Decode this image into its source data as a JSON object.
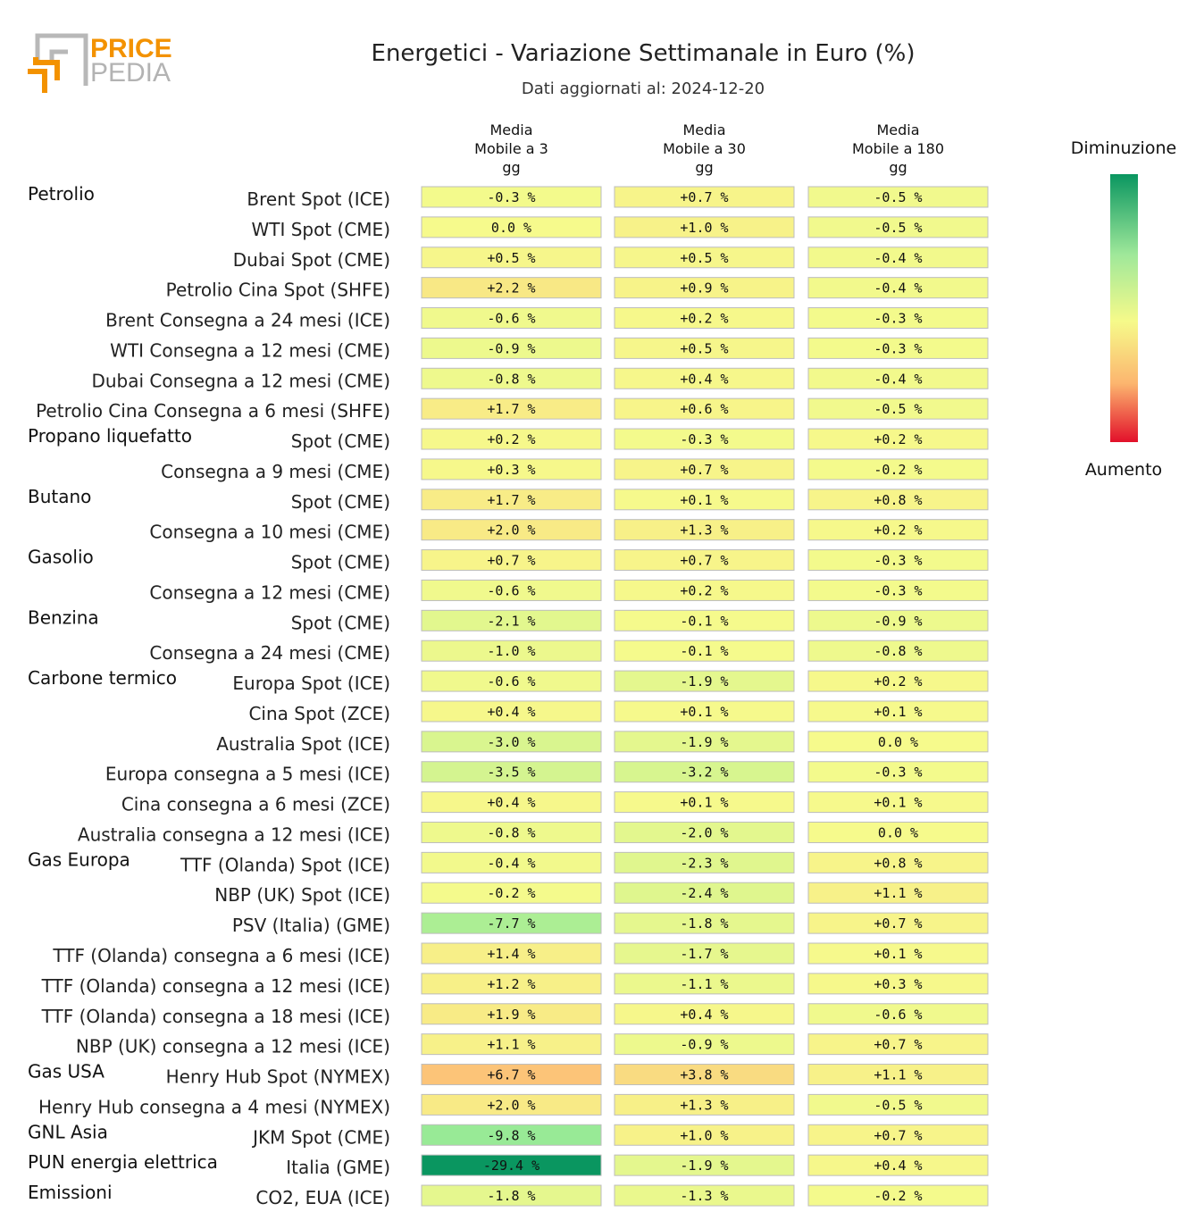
{
  "logo": {
    "line1": "PRICE",
    "line2": "PEDIA"
  },
  "chart_data": {
    "type": "table",
    "title": "Energetici - Variazione Settimanale in Euro (%)",
    "subtitle": "Dati aggiornati al: 2024-12-20",
    "columns": [
      [
        "Media",
        "Mobile a 3",
        "gg"
      ],
      [
        "Media",
        "Mobile a 30",
        "gg"
      ],
      [
        "Media",
        "Mobile a 180",
        "gg"
      ]
    ],
    "legend": {
      "top": "Diminuzione",
      "bottom": "Aumento"
    },
    "color_range": [
      -29.4,
      6.7
    ],
    "rows": [
      {
        "group": "Petrolio",
        "label": "Brent Spot (ICE)",
        "values": [
          -0.3,
          0.7,
          -0.5
        ],
        "texts": [
          "-0.3 %",
          "+0.7 %",
          "-0.5 %"
        ]
      },
      {
        "group": "",
        "label": "WTI Spot (CME)",
        "values": [
          0.0,
          1.0,
          -0.5
        ],
        "texts": [
          "0.0 %",
          "+1.0 %",
          "-0.5 %"
        ]
      },
      {
        "group": "",
        "label": "Dubai Spot (CME)",
        "values": [
          0.5,
          0.5,
          -0.4
        ],
        "texts": [
          "+0.5 %",
          "+0.5 %",
          "-0.4 %"
        ]
      },
      {
        "group": "",
        "label": "Petrolio Cina Spot (SHFE)",
        "values": [
          2.2,
          0.9,
          -0.4
        ],
        "texts": [
          "+2.2 %",
          "+0.9 %",
          "-0.4 %"
        ]
      },
      {
        "group": "",
        "label": "Brent Consegna a 24 mesi (ICE)",
        "values": [
          -0.6,
          0.2,
          -0.3
        ],
        "texts": [
          "-0.6 %",
          "+0.2 %",
          "-0.3 %"
        ]
      },
      {
        "group": "",
        "label": "WTI Consegna a 12 mesi (CME)",
        "values": [
          -0.9,
          0.5,
          -0.3
        ],
        "texts": [
          "-0.9 %",
          "+0.5 %",
          "-0.3 %"
        ]
      },
      {
        "group": "",
        "label": "Dubai Consegna a 12 mesi (CME)",
        "values": [
          -0.8,
          0.4,
          -0.4
        ],
        "texts": [
          "-0.8 %",
          "+0.4 %",
          "-0.4 %"
        ]
      },
      {
        "group": "",
        "label": "Petrolio Cina Consegna a 6 mesi (SHFE)",
        "values": [
          1.7,
          0.6,
          -0.5
        ],
        "texts": [
          "+1.7 %",
          "+0.6 %",
          "-0.5 %"
        ]
      },
      {
        "group": "Propano liquefatto",
        "label": "Spot (CME)",
        "values": [
          0.2,
          -0.3,
          0.2
        ],
        "texts": [
          "+0.2 %",
          "-0.3 %",
          "+0.2 %"
        ]
      },
      {
        "group": "",
        "label": "Consegna a 9 mesi (CME)",
        "values": [
          0.3,
          0.7,
          -0.2
        ],
        "texts": [
          "+0.3 %",
          "+0.7 %",
          "-0.2 %"
        ]
      },
      {
        "group": "Butano",
        "label": "Spot (CME)",
        "values": [
          1.7,
          0.1,
          0.8
        ],
        "texts": [
          "+1.7 %",
          "+0.1 %",
          "+0.8 %"
        ]
      },
      {
        "group": "",
        "label": "Consegna a 10 mesi (CME)",
        "values": [
          2.0,
          1.3,
          0.2
        ],
        "texts": [
          "+2.0 %",
          "+1.3 %",
          "+0.2 %"
        ]
      },
      {
        "group": "Gasolio",
        "label": "Spot (CME)",
        "values": [
          0.7,
          0.7,
          -0.3
        ],
        "texts": [
          "+0.7 %",
          "+0.7 %",
          "-0.3 %"
        ]
      },
      {
        "group": "",
        "label": "Consegna a 12 mesi (CME)",
        "values": [
          -0.6,
          0.2,
          -0.3
        ],
        "texts": [
          "-0.6 %",
          "+0.2 %",
          "-0.3 %"
        ]
      },
      {
        "group": "Benzina",
        "label": "Spot (CME)",
        "values": [
          -2.1,
          -0.1,
          -0.9
        ],
        "texts": [
          "-2.1 %",
          "-0.1 %",
          "-0.9 %"
        ]
      },
      {
        "group": "",
        "label": "Consegna a 24 mesi (CME)",
        "values": [
          -1.0,
          -0.1,
          -0.8
        ],
        "texts": [
          "-1.0 %",
          "-0.1 %",
          "-0.8 %"
        ]
      },
      {
        "group": "Carbone termico",
        "label": "Europa Spot (ICE)",
        "values": [
          -0.6,
          -1.9,
          0.2
        ],
        "texts": [
          "-0.6 %",
          "-1.9 %",
          "+0.2 %"
        ]
      },
      {
        "group": "",
        "label": "Cina Spot (ZCE)",
        "values": [
          0.4,
          0.1,
          0.1
        ],
        "texts": [
          "+0.4 %",
          "+0.1 %",
          "+0.1 %"
        ]
      },
      {
        "group": "",
        "label": "Australia Spot (ICE)",
        "values": [
          -3.0,
          -1.9,
          0.0
        ],
        "texts": [
          "-3.0 %",
          "-1.9 %",
          "0.0 %"
        ]
      },
      {
        "group": "",
        "label": "Europa consegna a 5 mesi (ICE)",
        "values": [
          -3.5,
          -3.2,
          -0.3
        ],
        "texts": [
          "-3.5 %",
          "-3.2 %",
          "-0.3 %"
        ]
      },
      {
        "group": "",
        "label": "Cina consegna a 6 mesi (ZCE)",
        "values": [
          0.4,
          0.1,
          0.1
        ],
        "texts": [
          "+0.4 %",
          "+0.1 %",
          "+0.1 %"
        ]
      },
      {
        "group": "",
        "label": "Australia consegna a 12 mesi (ICE)",
        "values": [
          -0.8,
          -2.0,
          0.0
        ],
        "texts": [
          "-0.8 %",
          "-2.0 %",
          "0.0 %"
        ]
      },
      {
        "group": "Gas Europa",
        "label": "TTF (Olanda) Spot (ICE)",
        "values": [
          -0.4,
          -2.3,
          0.8
        ],
        "texts": [
          "-0.4 %",
          "-2.3 %",
          "+0.8 %"
        ]
      },
      {
        "group": "",
        "label": "NBP (UK) Spot (ICE)",
        "values": [
          -0.2,
          -2.4,
          1.1
        ],
        "texts": [
          "-0.2 %",
          "-2.4 %",
          "+1.1 %"
        ]
      },
      {
        "group": "",
        "label": "PSV (Italia) (GME)",
        "values": [
          -7.7,
          -1.8,
          0.7
        ],
        "texts": [
          "-7.7 %",
          "-1.8 %",
          "+0.7 %"
        ]
      },
      {
        "group": "",
        "label": "TTF (Olanda) consegna a 6 mesi (ICE)",
        "values": [
          1.4,
          -1.7,
          0.1
        ],
        "texts": [
          "+1.4 %",
          "-1.7 %",
          "+0.1 %"
        ]
      },
      {
        "group": "",
        "label": "TTF (Olanda) consegna a 12 mesi (ICE)",
        "values": [
          1.2,
          -1.1,
          0.3
        ],
        "texts": [
          "+1.2 %",
          "-1.1 %",
          "+0.3 %"
        ]
      },
      {
        "group": "",
        "label": "TTF (Olanda) consegna a 18 mesi (ICE)",
        "values": [
          1.9,
          0.4,
          -0.6
        ],
        "texts": [
          "+1.9 %",
          "+0.4 %",
          "-0.6 %"
        ]
      },
      {
        "group": "",
        "label": "NBP (UK) consegna a 12 mesi (ICE)",
        "values": [
          1.1,
          -0.9,
          0.7
        ],
        "texts": [
          "+1.1 %",
          "-0.9 %",
          "+0.7 %"
        ]
      },
      {
        "group": "Gas USA",
        "label": "Henry Hub Spot (NYMEX)",
        "values": [
          6.7,
          3.8,
          1.1
        ],
        "texts": [
          "+6.7 %",
          "+3.8 %",
          "+1.1 %"
        ]
      },
      {
        "group": "",
        "label": "Henry Hub consegna a 4 mesi (NYMEX)",
        "values": [
          2.0,
          1.3,
          -0.5
        ],
        "texts": [
          "+2.0 %",
          "+1.3 %",
          "-0.5 %"
        ]
      },
      {
        "group": "GNL Asia",
        "label": "JKM Spot (CME)",
        "values": [
          -9.8,
          1.0,
          0.7
        ],
        "texts": [
          "-9.8 %",
          "+1.0 %",
          "+0.7 %"
        ]
      },
      {
        "group": "PUN energia elettrica",
        "label": "Italia (GME)",
        "values": [
          -29.4,
          -1.9,
          0.4
        ],
        "texts": [
          "-29.4 %",
          "-1.9 %",
          "+0.4 %"
        ]
      },
      {
        "group": "Emissioni",
        "label": "CO2, EUA (ICE)",
        "values": [
          -1.8,
          -1.3,
          -0.2
        ],
        "texts": [
          "-1.8 %",
          "-1.3 %",
          "-0.2 %"
        ]
      }
    ]
  }
}
